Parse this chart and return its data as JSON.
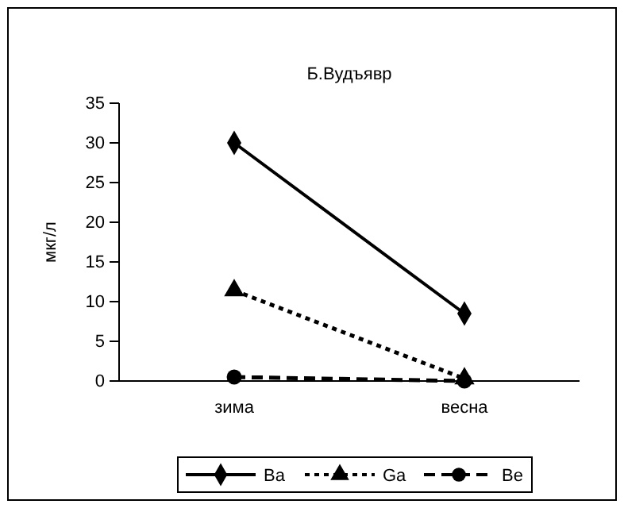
{
  "chart_data": {
    "type": "line",
    "title": "Б.Вудъявр",
    "ylabel": "мкг/л",
    "categories": [
      "зима",
      "весна"
    ],
    "ylim": [
      0,
      35
    ],
    "yticks": [
      0,
      5,
      10,
      15,
      20,
      25,
      30,
      35
    ],
    "grid": false,
    "legend": "bottom",
    "series": [
      {
        "name": "Ba",
        "color": "#000000",
        "values": [
          30,
          8.5
        ],
        "marker": "diamond",
        "line_style": "solid"
      },
      {
        "name": "Ga",
        "color": "#000000",
        "values": [
          11.4,
          0.3
        ],
        "marker": "triangle",
        "line_style": "dotted"
      },
      {
        "name": "Be",
        "color": "#000000",
        "values": [
          0.5,
          0
        ],
        "marker": "circle",
        "line_style": "dashed"
      }
    ]
  }
}
